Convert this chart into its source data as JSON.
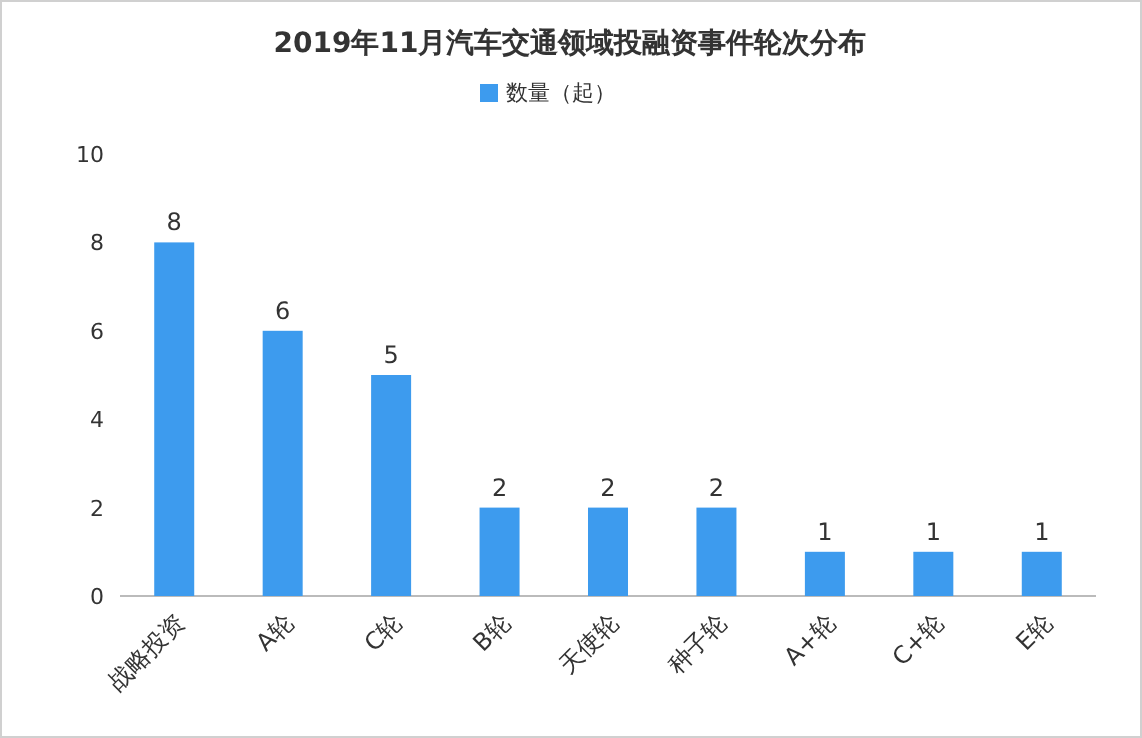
{
  "chart_data": {
    "type": "bar",
    "title": "2019年11月汽车交通领域投融资事件轮次分布",
    "categories": [
      "战略投资",
      "A轮",
      "C轮",
      "B轮",
      "天使轮",
      "种子轮",
      "A+轮",
      "C+轮",
      "E轮"
    ],
    "series": [
      {
        "name": "数量（起）",
        "color": "#3d9bee",
        "values": [
          8,
          6,
          5,
          2,
          2,
          2,
          1,
          1,
          1
        ]
      }
    ],
    "ylim": [
      0,
      10
    ],
    "yticks": [
      0,
      2,
      4,
      6,
      8,
      10
    ],
    "data_labels": true,
    "legend": "top",
    "grid": false
  }
}
